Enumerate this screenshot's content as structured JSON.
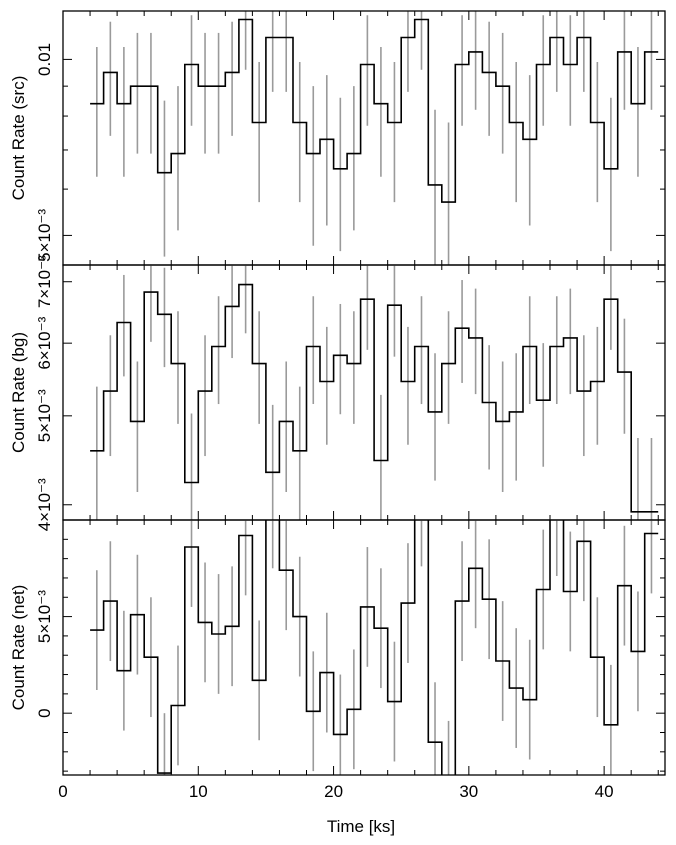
{
  "chart_data": [
    {
      "type": "line",
      "panel": "src",
      "ylabel": "Count Rate (src)",
      "xlabel": "",
      "xlim": [
        0,
        44.5
      ],
      "ylim": [
        0.00445,
        0.0121
      ],
      "yscale": "log",
      "ytick_labels": [
        {
          "v": 0.005,
          "t": "5×10⁻³"
        },
        {
          "v": 0.01,
          "t": "0.01"
        }
      ],
      "yminor": [
        0.006,
        0.007,
        0.008,
        0.009
      ],
      "bin_width": 1.0,
      "x": [
        2.5,
        3.5,
        4.5,
        5.5,
        6.5,
        7.5,
        8.5,
        9.5,
        10.5,
        11.5,
        12.5,
        13.5,
        14.5,
        15.5,
        16.5,
        17.5,
        18.5,
        19.5,
        20.5,
        21.5,
        22.5,
        23.5,
        24.5,
        25.5,
        26.5,
        27.5,
        28.5,
        29.5,
        30.5,
        31.5,
        32.5,
        33.5,
        34.5,
        35.5,
        36.5,
        37.5,
        38.5,
        39.5,
        40.5,
        41.5,
        42.5,
        43.5
      ],
      "y": [
        0.0084,
        0.0095,
        0.0084,
        0.009,
        0.009,
        0.0064,
        0.0069,
        0.0098,
        0.009,
        0.009,
        0.0095,
        0.0117,
        0.0078,
        0.0109,
        0.0109,
        0.0078,
        0.0069,
        0.0073,
        0.0065,
        0.0069,
        0.0098,
        0.0084,
        0.0078,
        0.0109,
        0.0117,
        0.0061,
        0.0057,
        0.0098,
        0.0103,
        0.0095,
        0.009,
        0.0078,
        0.0073,
        0.0098,
        0.0109,
        0.0098,
        0.0109,
        0.0078,
        0.0065,
        0.0103,
        0.0084,
        0.0103
      ],
      "yerr_lo": [
        0.0021,
        0.0021,
        0.0021,
        0.0021,
        0.0021,
        0.0018,
        0.0018,
        0.0021,
        0.0021,
        0.0021,
        0.0021,
        0.0021,
        0.0021,
        0.0021,
        0.0021,
        0.0021,
        0.0021,
        0.0021,
        0.0018,
        0.0018,
        0.0021,
        0.0021,
        0.0021,
        0.0021,
        0.0021,
        0.0018,
        0.0018,
        0.0021,
        0.0021,
        0.0021,
        0.0021,
        0.0021,
        0.0021,
        0.0021,
        0.0021,
        0.0021,
        0.0021,
        0.0021,
        0.0018,
        0.0021,
        0.0021,
        0.0021
      ],
      "yerr_hi": [
        0.0021,
        0.0021,
        0.0021,
        0.0021,
        0.0021,
        0.0021,
        0.0021,
        0.0021,
        0.0021,
        0.0021,
        0.0021,
        0.0021,
        0.0021,
        0.0021,
        0.0021,
        0.0021,
        0.0021,
        0.0021,
        0.0021,
        0.0021,
        0.0021,
        0.0021,
        0.0021,
        0.0021,
        0.0021,
        0.0021,
        0.0021,
        0.0021,
        0.0021,
        0.0021,
        0.0021,
        0.0021,
        0.0021,
        0.0021,
        0.0021,
        0.0021,
        0.0021,
        0.0021,
        0.0021,
        0.0021,
        0.0021,
        0.0021
      ]
    },
    {
      "type": "line",
      "panel": "bg",
      "ylabel": "Count Rate (bg)",
      "xlabel": "",
      "xlim": [
        0,
        44.5
      ],
      "ylim": [
        0.00385,
        0.0073
      ],
      "yscale": "log",
      "ytick_labels": [
        {
          "v": 0.004,
          "t": "4×10⁻³"
        },
        {
          "v": 0.005,
          "t": "5×10⁻³"
        },
        {
          "v": 0.006,
          "t": "6×10⁻³"
        },
        {
          "v": 0.007,
          "t": "7×10⁻³"
        }
      ],
      "yminor": [],
      "bin_width": 1.0,
      "x": [
        2.5,
        3.5,
        4.5,
        5.5,
        6.5,
        7.5,
        8.5,
        9.5,
        10.5,
        11.5,
        12.5,
        13.5,
        14.5,
        15.5,
        16.5,
        17.5,
        18.5,
        19.5,
        20.5,
        21.5,
        22.5,
        23.5,
        24.5,
        25.5,
        26.5,
        27.5,
        28.5,
        29.5,
        30.5,
        31.5,
        32.5,
        33.5,
        34.5,
        35.5,
        36.5,
        37.5,
        38.5,
        39.5,
        40.5,
        41.5,
        42.5,
        43.5
      ],
      "y": [
        0.00458,
        0.00532,
        0.00632,
        0.00493,
        0.00682,
        0.00645,
        0.0057,
        0.00423,
        0.00532,
        0.00595,
        0.00658,
        0.00695,
        0.0057,
        0.00434,
        0.00493,
        0.00458,
        0.00595,
        0.00545,
        0.00582,
        0.0057,
        0.0067,
        0.00447,
        0.0066,
        0.00545,
        0.00595,
        0.00505,
        0.0057,
        0.00623,
        0.00608,
        0.00517,
        0.00493,
        0.00505,
        0.00595,
        0.0052,
        0.00595,
        0.00608,
        0.00532,
        0.00545,
        0.0067,
        0.00558,
        0.00393,
        0.00393
      ],
      "yerr_lo": [
        0.0008,
        0.0008,
        0.0008,
        0.0008,
        0.0008,
        0.0008,
        0.0008,
        0.0008,
        0.0008,
        0.0008,
        0.0008,
        0.0008,
        0.0008,
        0.0008,
        0.0008,
        0.0008,
        0.0008,
        0.0008,
        0.0008,
        0.0008,
        0.0008,
        0.0008,
        0.0008,
        0.0008,
        0.0008,
        0.0008,
        0.0008,
        0.0008,
        0.0008,
        0.0008,
        0.0008,
        0.0008,
        0.0008,
        0.0008,
        0.0008,
        0.0008,
        0.0008,
        0.0008,
        0.0008,
        0.0008,
        0.0008,
        0.0008
      ],
      "yerr_hi": [
        0.0008,
        0.0008,
        0.0008,
        0.0008,
        0.0008,
        0.0008,
        0.0008,
        0.0008,
        0.0008,
        0.0008,
        0.0008,
        0.0008,
        0.0008,
        0.0008,
        0.0008,
        0.0008,
        0.0008,
        0.0008,
        0.0008,
        0.0008,
        0.0008,
        0.0008,
        0.0008,
        0.0008,
        0.0008,
        0.0008,
        0.0008,
        0.0008,
        0.0008,
        0.0008,
        0.0008,
        0.0008,
        0.0008,
        0.0008,
        0.0008,
        0.0008,
        0.0008,
        0.0008,
        0.0008,
        0.0008,
        0.0008,
        0.0008
      ]
    },
    {
      "type": "line",
      "panel": "net",
      "ylabel": "Count Rate (net)",
      "xlabel": "Time [ks]",
      "xlim": [
        0,
        44.5
      ],
      "ylim": [
        -0.0032,
        0.01
      ],
      "yscale": "linear",
      "ytick_labels": [
        {
          "v": 0,
          "t": "0"
        },
        {
          "v": 0.005,
          "t": "5×10⁻³"
        }
      ],
      "yminor": [
        -0.003,
        -0.002,
        -0.001,
        0.001,
        0.002,
        0.003,
        0.004,
        0.006,
        0.007,
        0.008,
        0.009
      ],
      "xticks": [
        {
          "v": 0,
          "t": "0"
        },
        {
          "v": 10,
          "t": "10"
        },
        {
          "v": 20,
          "t": "20"
        },
        {
          "v": 30,
          "t": "30"
        },
        {
          "v": 40,
          "t": "40"
        }
      ],
      "xminor": [
        2,
        4,
        6,
        8,
        12,
        14,
        16,
        18,
        22,
        24,
        26,
        28,
        32,
        34,
        36,
        38,
        42,
        44
      ],
      "bin_width": 1.0,
      "x": [
        2.5,
        3.5,
        4.5,
        5.5,
        6.5,
        7.5,
        8.5,
        9.5,
        10.5,
        11.5,
        12.5,
        13.5,
        14.5,
        15.5,
        16.5,
        17.5,
        18.5,
        19.5,
        20.5,
        21.5,
        22.5,
        23.5,
        24.5,
        25.5,
        26.5,
        27.5,
        28.5,
        29.5,
        30.5,
        31.5,
        32.5,
        33.5,
        34.5,
        35.5,
        36.5,
        37.5,
        38.5,
        39.5,
        40.5,
        41.5,
        42.5,
        43.5
      ],
      "y": [
        0.0043,
        0.0058,
        0.0022,
        0.0051,
        0.0029,
        -0.0031,
        0.0004,
        0.0086,
        0.0047,
        0.0041,
        0.0045,
        0.0092,
        0.0017,
        0.0106,
        0.0074,
        0.005,
        0.0001,
        0.0021,
        -0.0011,
        0.0002,
        0.0055,
        0.0044,
        0.0006,
        0.0057,
        0.0107,
        -0.0015,
        -0.0035,
        0.0058,
        0.0075,
        0.0059,
        0.0027,
        0.0013,
        0.0007,
        0.0064,
        0.0102,
        0.0063,
        0.0089,
        0.0029,
        -0.0006,
        0.0066,
        0.0032,
        0.0093
      ],
      "yerr_lo": [
        0.0031,
        0.0031,
        0.0031,
        0.0031,
        0.0031,
        0.0031,
        0.0031,
        0.0031,
        0.0031,
        0.0031,
        0.0031,
        0.0031,
        0.0031,
        0.0031,
        0.0031,
        0.0031,
        0.0031,
        0.0031,
        0.0031,
        0.0031,
        0.0031,
        0.0031,
        0.0031,
        0.0031,
        0.0031,
        0.0031,
        0.0031,
        0.0031,
        0.0031,
        0.0031,
        0.0031,
        0.0031,
        0.0031,
        0.0031,
        0.0031,
        0.0031,
        0.0031,
        0.0031,
        0.0031,
        0.0031,
        0.0031,
        0.0031
      ],
      "yerr_hi": [
        0.0031,
        0.0031,
        0.0031,
        0.0031,
        0.0031,
        0.0031,
        0.0031,
        0.0031,
        0.0031,
        0.0031,
        0.0031,
        0.0031,
        0.0031,
        0.0031,
        0.0031,
        0.0031,
        0.0031,
        0.0031,
        0.0031,
        0.0031,
        0.0031,
        0.0031,
        0.0031,
        0.0031,
        0.0031,
        0.0031,
        0.0031,
        0.0031,
        0.0031,
        0.0031,
        0.0031,
        0.0031,
        0.0031,
        0.0031,
        0.0031,
        0.0031,
        0.0031,
        0.0031,
        0.0031,
        0.0031,
        0.0031,
        0.0031
      ]
    }
  ],
  "style": {
    "line_color": "#000000",
    "errorbar_color": "#9a9a9a",
    "background": "#ffffff"
  }
}
